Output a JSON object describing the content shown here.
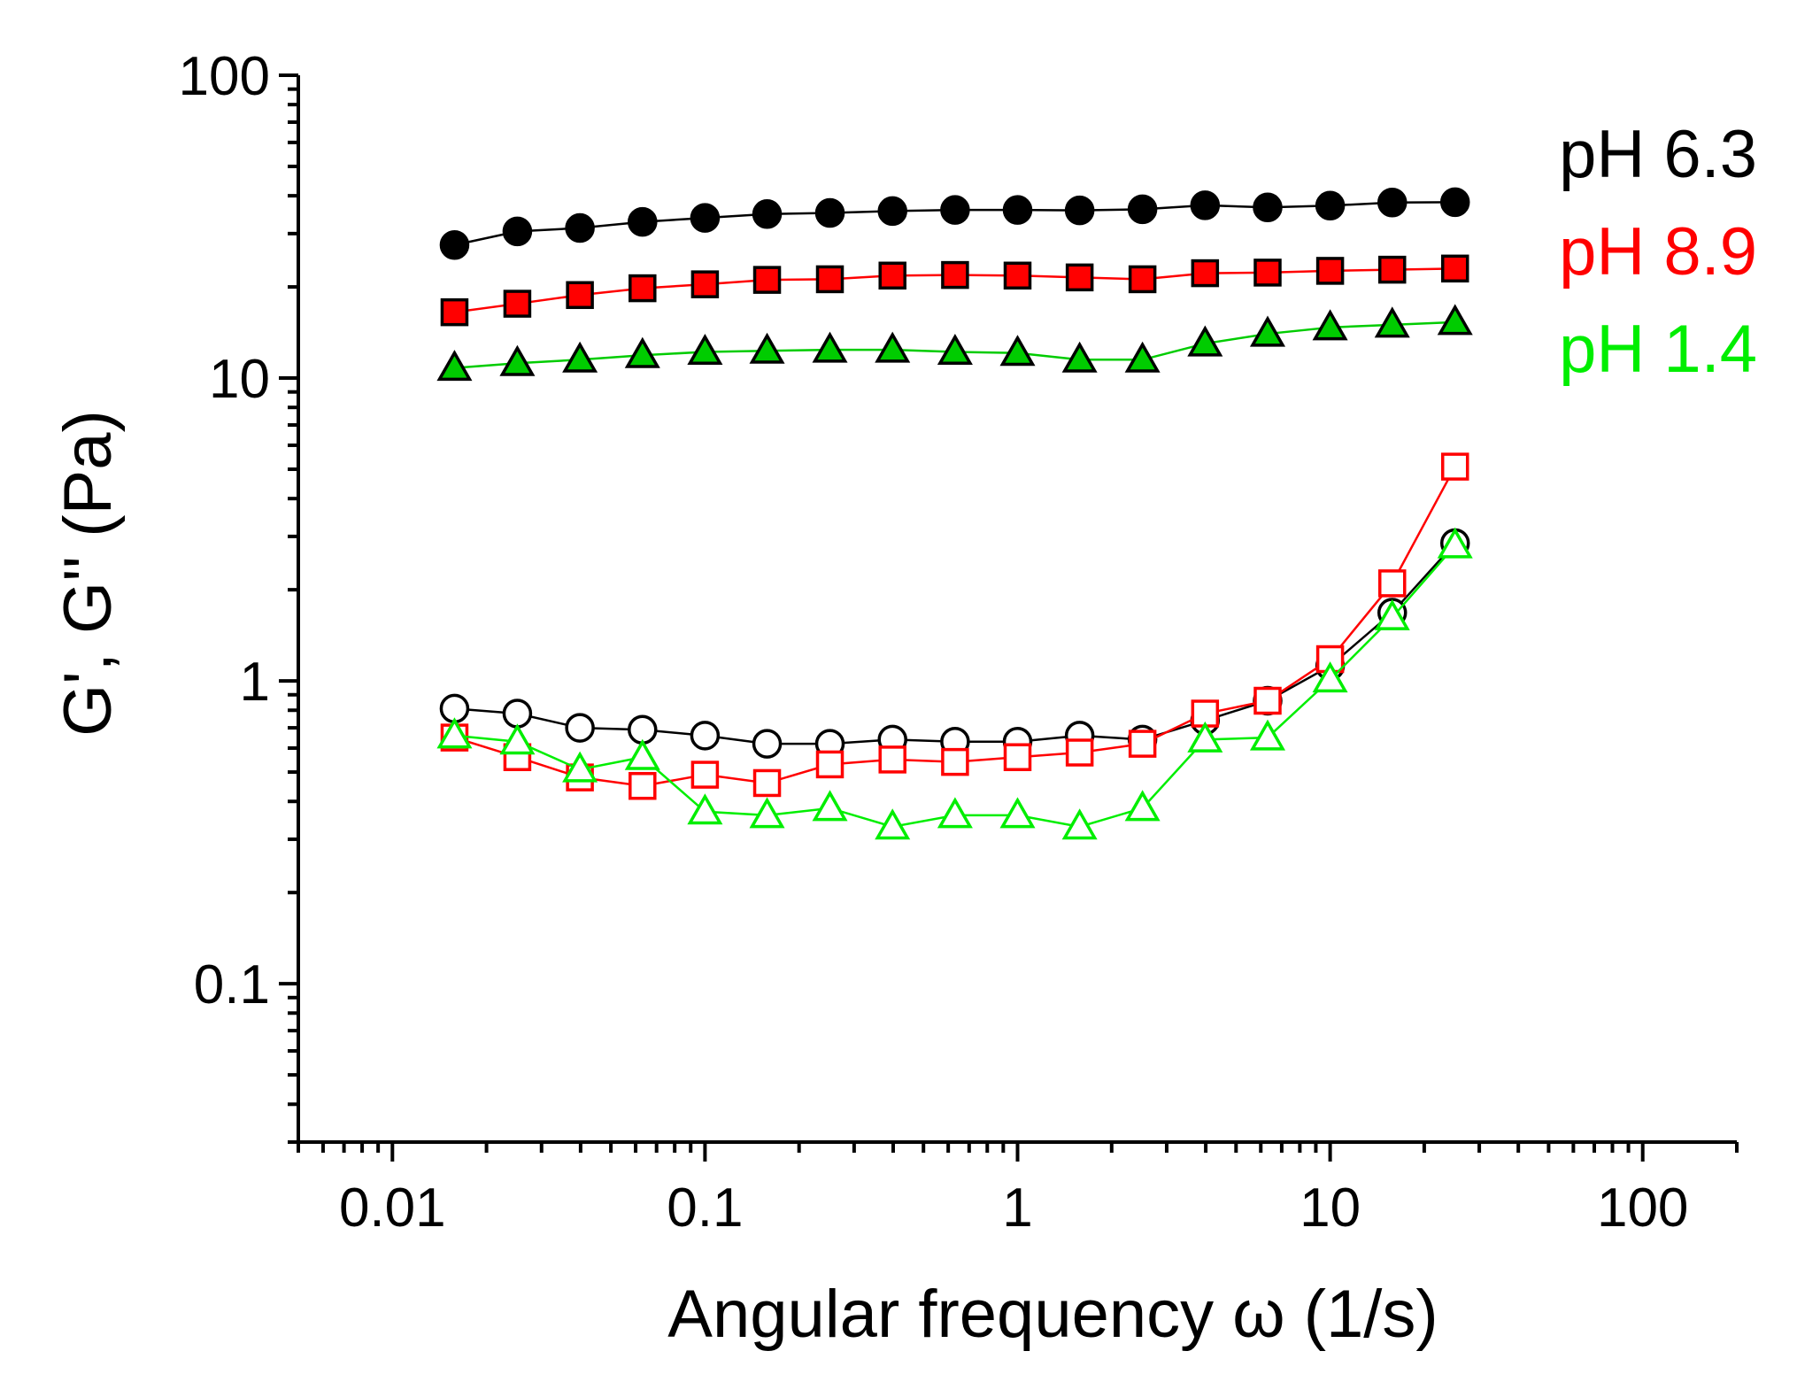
{
  "chart_data": {
    "type": "scatter",
    "x_scale": "log",
    "y_scale": "log",
    "xlabel": "Angular frequency ω (1/s)",
    "ylabel": "G', G'' (Pa)",
    "xlim": [
      0.005,
      200
    ],
    "ylim": [
      0.03,
      100
    ],
    "x_ticks": [
      {
        "value": 0.01,
        "label": "0.01"
      },
      {
        "value": 0.1,
        "label": "0.1"
      },
      {
        "value": 1,
        "label": "1"
      },
      {
        "value": 10,
        "label": "10"
      },
      {
        "value": 100,
        "label": "100"
      }
    ],
    "y_ticks": [
      {
        "value": 0.1,
        "label": "0.1"
      },
      {
        "value": 1,
        "label": "1"
      },
      {
        "value": 10,
        "label": "10"
      },
      {
        "value": 100,
        "label": "100"
      }
    ],
    "x": [
      0.0158,
      0.0251,
      0.0398,
      0.0631,
      0.1,
      0.158,
      0.251,
      0.398,
      0.631,
      1.0,
      1.58,
      2.51,
      3.98,
      6.31,
      10.0,
      15.8,
      25.1
    ],
    "legend": [
      {
        "label": "pH 6.3",
        "color": "#000000"
      },
      {
        "label": "pH 8.9",
        "color": "#ff0000"
      },
      {
        "label": "pH 1.4",
        "color": "#00ee00"
      }
    ],
    "series": [
      {
        "name": "pH 6.3 G'",
        "modulus": "G'",
        "marker": "circle",
        "filled": true,
        "fill": "#000000",
        "stroke": "#000000",
        "line": "#000000",
        "values": [
          27.5,
          30.5,
          31.3,
          32.8,
          33.8,
          34.8,
          35.1,
          35.6,
          35.9,
          35.9,
          35.8,
          36.1,
          37.2,
          36.6,
          37.1,
          38.0,
          38.1
        ]
      },
      {
        "name": "pH 8.9 G'",
        "modulus": "G'",
        "marker": "square",
        "filled": true,
        "fill": "#ff0000",
        "stroke": "#000000",
        "line": "#ff0000",
        "values": [
          16.5,
          17.6,
          18.8,
          19.8,
          20.4,
          21.1,
          21.2,
          21.8,
          21.9,
          21.8,
          21.5,
          21.2,
          22.2,
          22.3,
          22.6,
          22.8,
          23.0
        ]
      },
      {
        "name": "pH 1.4 G'",
        "modulus": "G'",
        "marker": "triangle",
        "filled": true,
        "fill": "#00cc00",
        "stroke": "#000000",
        "line": "#00cc00",
        "values": [
          10.8,
          11.2,
          11.5,
          11.9,
          12.2,
          12.3,
          12.4,
          12.4,
          12.2,
          12.1,
          11.5,
          11.5,
          13.0,
          14.0,
          14.7,
          15.0,
          15.3
        ]
      },
      {
        "name": "pH 6.3 G''",
        "modulus": "G''",
        "marker": "circle",
        "filled": false,
        "fill": "none",
        "stroke": "#000000",
        "line": "#000000",
        "values": [
          0.81,
          0.78,
          0.7,
          0.69,
          0.66,
          0.62,
          0.62,
          0.64,
          0.63,
          0.63,
          0.66,
          0.64,
          0.74,
          0.86,
          1.12,
          1.68,
          2.85
        ]
      },
      {
        "name": "pH 8.9 G''",
        "modulus": "G''",
        "marker": "square",
        "filled": false,
        "fill": "none",
        "stroke": "#ff0000",
        "line": "#ff0000",
        "values": [
          0.65,
          0.56,
          0.48,
          0.45,
          0.49,
          0.46,
          0.53,
          0.55,
          0.54,
          0.56,
          0.58,
          0.62,
          0.78,
          0.86,
          1.18,
          2.1,
          5.1
        ]
      },
      {
        "name": "pH 1.4 G''",
        "modulus": "G''",
        "marker": "triangle",
        "filled": false,
        "fill": "none",
        "stroke": "#00ee00",
        "line": "#00ee00",
        "values": [
          0.66,
          0.63,
          0.51,
          0.56,
          0.37,
          0.36,
          0.38,
          0.33,
          0.36,
          0.36,
          0.33,
          0.38,
          0.64,
          0.65,
          1.01,
          1.62,
          2.8
        ]
      }
    ]
  }
}
